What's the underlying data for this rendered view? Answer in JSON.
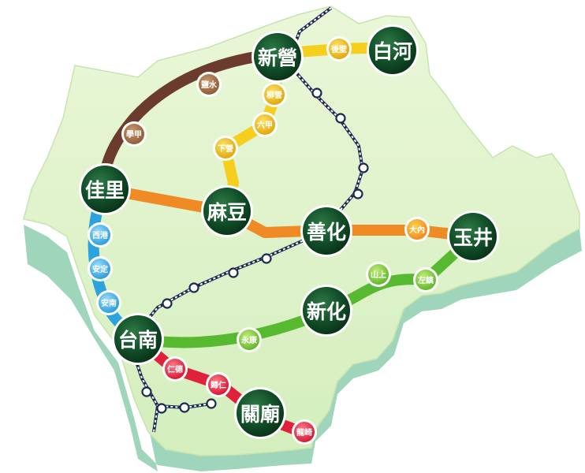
{
  "map": {
    "hubs": [
      {
        "id": "xinying",
        "label": "新營"
      },
      {
        "id": "baihe",
        "label": "白河"
      },
      {
        "id": "jiali",
        "label": "佳里"
      },
      {
        "id": "madou",
        "label": "麻豆"
      },
      {
        "id": "shanhua",
        "label": "善化"
      },
      {
        "id": "yujing",
        "label": "玉井"
      },
      {
        "id": "xinhua",
        "label": "新化"
      },
      {
        "id": "tainan",
        "label": "台南"
      },
      {
        "id": "guanmiao",
        "label": "關廟"
      }
    ],
    "stops": [
      {
        "id": "houbi",
        "label": "後壁",
        "line": "yellow"
      },
      {
        "id": "liuying",
        "label": "柳營",
        "line": "yellow"
      },
      {
        "id": "liujia",
        "label": "六甲",
        "line": "yellow"
      },
      {
        "id": "xiaying",
        "label": "下營",
        "line": "yellow"
      },
      {
        "id": "yanshui",
        "label": "鹽水",
        "line": "brown"
      },
      {
        "id": "xuejia",
        "label": "學甲",
        "line": "brown"
      },
      {
        "id": "xigang",
        "label": "西港",
        "line": "blue"
      },
      {
        "id": "anding",
        "label": "安定",
        "line": "blue"
      },
      {
        "id": "annan",
        "label": "安南",
        "line": "blue"
      },
      {
        "id": "danei",
        "label": "大內",
        "line": "orange"
      },
      {
        "id": "shanshang",
        "label": "山上",
        "line": "green"
      },
      {
        "id": "zuozhen",
        "label": "左鎮",
        "line": "green"
      },
      {
        "id": "yongkang",
        "label": "永康",
        "line": "green"
      },
      {
        "id": "rende",
        "label": "仁德",
        "line": "red"
      },
      {
        "id": "guiren",
        "label": "歸仁",
        "line": "red"
      },
      {
        "id": "longqi",
        "label": "龍崎",
        "line": "red"
      }
    ],
    "colors": {
      "land_top": "#dff3c8",
      "land_side": "#a8dcc2",
      "brown": "#6b3b2e",
      "yellow": "#f6cf1e",
      "orange": "#f08a24",
      "blue": "#2ba3df",
      "green": "#56b92f",
      "red": "#e0213b",
      "hub": "#0f4a24",
      "rail": "#1d2a52"
    }
  }
}
